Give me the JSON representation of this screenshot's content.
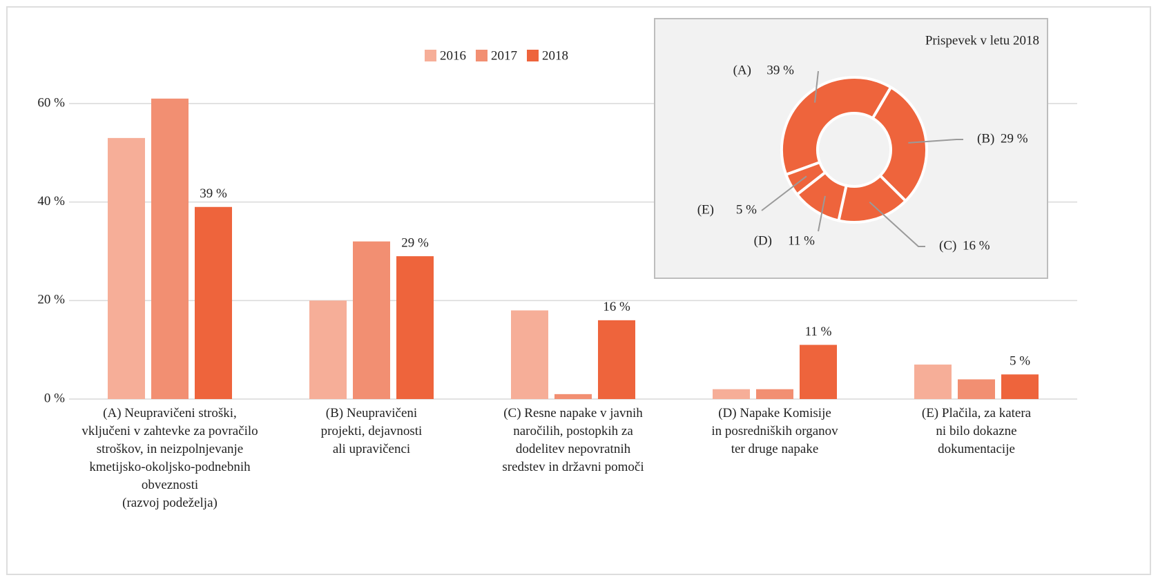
{
  "chart_data": [
    {
      "type": "bar",
      "categories": [
        "(A) Neupravičeni stroški,\nvključeni v zahtevke za povračilo\nstroškov, in neizpolnjevanje\nkmetijsko-okoljsko-podnebnih\nobveznosti\n(razvoj podeželja)",
        "(B) Neupravičeni\nprojekti, dejavnosti\nali upravičenci",
        "(C) Resne napake v javnih\nnaročilih, postopkih za\ndodelitev nepovratnih\nsredstev in državni pomoči",
        "(D) Napake Komisije\nin posredniških organov\nter druge napake",
        "(E) Plačila, za katera\nni bilo dokazne\ndokumentacije"
      ],
      "series": [
        {
          "name": "2016",
          "color": "#f6ae98",
          "values": [
            53,
            20,
            18,
            2,
            7
          ]
        },
        {
          "name": "2017",
          "color": "#f28f72",
          "values": [
            61,
            32,
            1,
            2,
            4
          ]
        },
        {
          "name": "2018",
          "color": "#ee643c",
          "values": [
            39,
            29,
            16,
            11,
            5
          ],
          "value_labels": [
            "39 %",
            "29 %",
            "16 %",
            "11 %",
            "5 %"
          ]
        }
      ],
      "ylim": [
        0,
        67
      ],
      "yticks": [
        {
          "value": 0,
          "label": "0 %"
        },
        {
          "value": 20,
          "label": "20 %"
        },
        {
          "value": 40,
          "label": "40 %"
        },
        {
          "value": 60,
          "label": "60 %"
        }
      ],
      "grid": true,
      "legend": "top"
    },
    {
      "type": "donut",
      "title": "Prispevek v letu 2018",
      "color": "#ee643c",
      "categories": [
        "(A)",
        "(B)",
        "(C)",
        "(D)",
        "(E)"
      ],
      "values": [
        39,
        29,
        16,
        11,
        5
      ],
      "value_labels": [
        "39 %",
        "29 %",
        "16 %",
        "11 %",
        "5 %"
      ]
    }
  ]
}
